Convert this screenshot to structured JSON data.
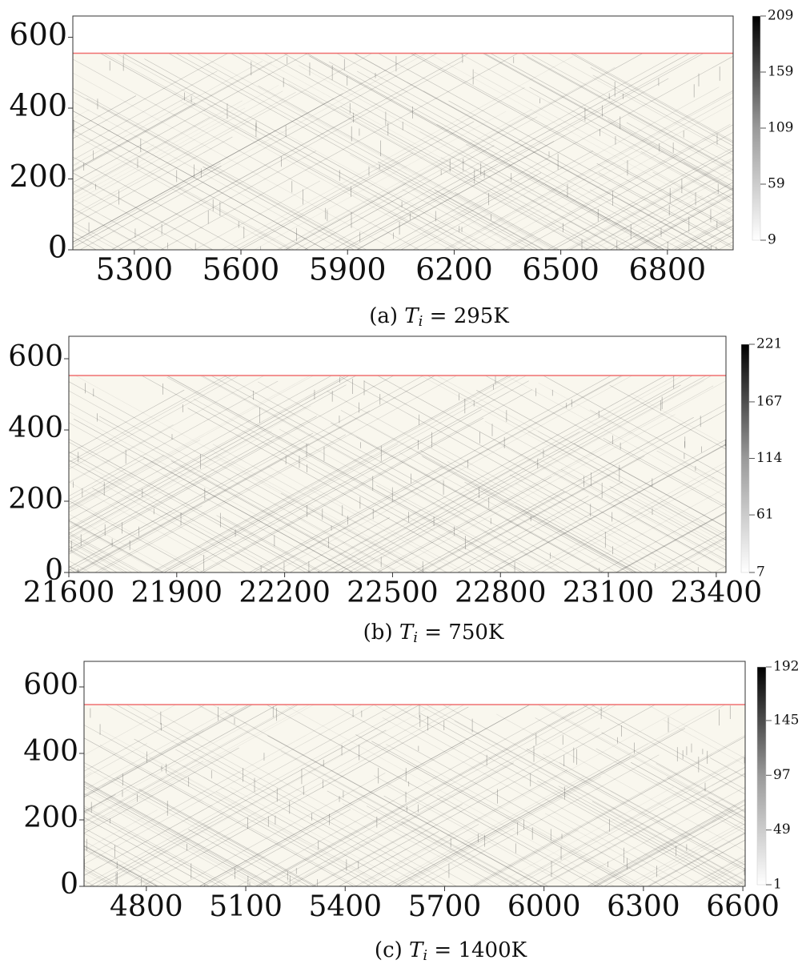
{
  "chart_data": [
    {
      "type": "heatmap",
      "xlim": [
        5127,
        6985
      ],
      "ylim": [
        0,
        660
      ],
      "xticks": [
        5300,
        5600,
        5900,
        6200,
        6500,
        6800
      ],
      "yticks": [
        0,
        200,
        400,
        600
      ],
      "colorbar": {
        "lim": [
          9,
          209
        ],
        "ticks": [
          9,
          59,
          109,
          159,
          209
        ]
      },
      "hline": {
        "value": 555,
        "color": "#f07070"
      },
      "caption": [
        "(a) ",
        "T",
        "i",
        " = 295K"
      ]
    },
    {
      "type": "heatmap",
      "xlim": [
        21600,
        23427
      ],
      "ylim": [
        0,
        663
      ],
      "xticks": [
        21600,
        21900,
        22200,
        22500,
        22800,
        23100,
        23400
      ],
      "yticks": [
        0,
        200,
        400,
        600
      ],
      "colorbar": {
        "lim": [
          7,
          221
        ],
        "ticks": [
          7,
          61,
          114,
          167,
          221
        ]
      },
      "hline": {
        "value": 553,
        "color": "#f07070"
      },
      "caption": [
        "(b) ",
        "T",
        "i",
        " = 750K"
      ]
    },
    {
      "type": "heatmap",
      "xlim": [
        4612,
        6607
      ],
      "ylim": [
        0,
        677
      ],
      "xticks": [
        4800,
        5100,
        5400,
        5700,
        6000,
        6300,
        6600
      ],
      "yticks": [
        0,
        200,
        400,
        600
      ],
      "colorbar": {
        "lim": [
          1,
          192
        ],
        "ticks": [
          1,
          49,
          97,
          145,
          192
        ]
      },
      "hline": {
        "value": 547,
        "color": "#f07070"
      },
      "caption": [
        "(c) ",
        "T",
        "i",
        " = 1400K"
      ]
    }
  ]
}
